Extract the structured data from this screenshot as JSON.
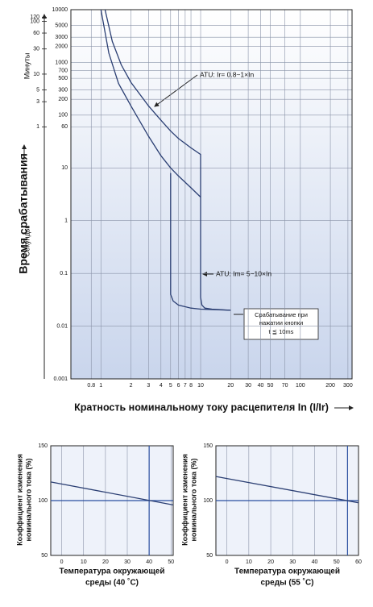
{
  "chart_data": [
    {
      "type": "line",
      "xscale": "log",
      "yscale": "log",
      "grid": true,
      "xlabel": "Кратность номинальному току расцепителя In (I/Ir)",
      "ylabel": "Время срабатывания",
      "ylabel_seconds": "Секунды",
      "ylabel_minutes": "Минуты",
      "annotations": [
        "ATU: Ir= 0.8~1×In",
        "ATU: Im= 5~10×In",
        "Срабатывание при",
        "нажатии кнопки",
        "t ≦ 10ms"
      ],
      "xlim": [
        0.5,
        330
      ],
      "ylim": [
        0.001,
        10000
      ],
      "xticks": [
        0.8,
        1,
        2,
        3,
        4,
        5,
        6,
        7,
        8,
        10,
        20,
        30,
        40,
        50,
        70,
        100,
        200,
        300
      ],
      "yticks": [
        0.001,
        0.01,
        0.1,
        1,
        10,
        60,
        100,
        200,
        300,
        500,
        700,
        1000,
        2000,
        3000,
        5000,
        10000
      ],
      "y2ticks": [
        {
          "value": 60,
          "label": "1"
        },
        {
          "value": 180,
          "label": "3"
        },
        {
          "value": 300,
          "label": "5"
        },
        {
          "value": 600,
          "label": "10"
        },
        {
          "value": 1800,
          "label": "30"
        },
        {
          "value": 3600,
          "label": "60"
        },
        {
          "value": 6000,
          "label": "100"
        },
        {
          "value": 7200,
          "label": "120"
        }
      ],
      "series": [
        {
          "color": "#2b3f73",
          "x": [
            1.1,
            1.3,
            1.6,
            2,
            3,
            4,
            5,
            6,
            8,
            10,
            10,
            10.3,
            11,
            13,
            20
          ],
          "values": [
            10000,
            2500,
            900,
            420,
            150,
            80,
            50,
            36,
            24,
            18,
            0.035,
            0.025,
            0.022,
            0.021,
            0.02
          ]
        },
        {
          "color": "#2b3f73",
          "x": [
            1.0,
            1.2,
            1.5,
            2,
            3,
            4,
            5,
            6,
            8,
            10
          ],
          "values": [
            10000,
            1500,
            400,
            150,
            40,
            17,
            10,
            7,
            4.2,
            2.8
          ]
        },
        {
          "color": "#2b3f73",
          "x": [
            5,
            5,
            5.3,
            6,
            8,
            10,
            20
          ],
          "values": [
            8,
            0.04,
            0.03,
            0.025,
            0.022,
            0.021,
            0.02
          ]
        }
      ]
    },
    {
      "type": "line",
      "grid": true,
      "xlabel": [
        "Температура окружающей",
        "среды (40 ˚C)"
      ],
      "ylabel": [
        "Коэффициент изменения",
        "номинального тока (%)"
      ],
      "xlim": [
        -5,
        51
      ],
      "ylim": [
        50,
        150
      ],
      "xticks": [
        0,
        10,
        20,
        30,
        40,
        50
      ],
      "yticks": [
        50,
        100,
        150
      ],
      "reference_x": 40,
      "reference_y": 100,
      "reference_color": "#2a4fa0",
      "series": [
        {
          "color": "#2b3f73",
          "x": [
            -5,
            51
          ],
          "values": [
            117,
            96
          ]
        }
      ]
    },
    {
      "type": "line",
      "grid": true,
      "xlabel": [
        "Температура окружающей",
        "среды (55 ˚C)"
      ],
      "ylabel": [
        "Коэффициент изменения",
        "номинального тока (%)"
      ],
      "xlim": [
        -5,
        60
      ],
      "ylim": [
        50,
        150
      ],
      "xticks": [
        0,
        10,
        20,
        30,
        40,
        50,
        60
      ],
      "yticks": [
        50,
        100,
        150
      ],
      "reference_x": 55,
      "reference_y": 100,
      "reference_color": "#2a4fa0",
      "series": [
        {
          "color": "#2b3f73",
          "x": [
            -5,
            60
          ],
          "values": [
            122,
            98
          ]
        }
      ]
    }
  ]
}
